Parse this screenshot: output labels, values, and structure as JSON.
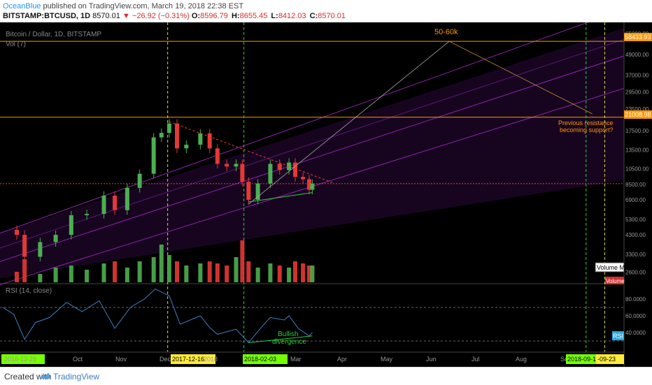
{
  "header": {
    "user": "OceanBlue",
    "published": "published on TradingView.com, March 19, 2018 22:38 EST",
    "symbol": "BITSTAMP:BTCUSD, 1D",
    "last": "8570.01",
    "change": "▼ −26.92 (−0.31%)",
    "o_label": "O:",
    "o": "8596.79",
    "h_label": "H:",
    "h": "8655.45",
    "l_label": "L:",
    "l": "8412.03",
    "c_label": "C:",
    "c": "8570.01"
  },
  "chart": {
    "pane_title": "Bitcoin / Dollar, 1D, BITSTAMP",
    "vol_label": "Vol (7)",
    "rsi_label": "RSI (14, close)",
    "annotations": {
      "target": "50-60k",
      "support_line1": "Previous resistance",
      "support_line2": "becoming support?",
      "bullish1": "Bullish",
      "bullish2": "divergence"
    },
    "badges": {
      "volume_ma": "Volume MA",
      "volume": "Volume",
      "rsi": "RSI",
      "price_58433": "58433.93",
      "price_21008": "21008.98"
    },
    "x_labels": [
      "2016-12-29",
      "Oct",
      "Nov",
      "Dec",
      "2017-12-16",
      "2018",
      "2018-02-03",
      "Mar",
      "Apr",
      "May",
      "Jun",
      "Jul",
      "Aug",
      "Se",
      "2018-09-11",
      "-09-23"
    ],
    "price_ticks": [
      "65000.00",
      "49000.00",
      "37000.00",
      "29500.00",
      "23500.00",
      "17500.00",
      "13500.00",
      "10500.00",
      "8500.00",
      "6900.00",
      "5300.00",
      "4300.00",
      "3300.00",
      "2600.00"
    ],
    "rsi_ticks": [
      "80.0000",
      "60.0000",
      "40.0000"
    ],
    "colors": {
      "background": "#000000",
      "up": "#4caf50",
      "down": "#e53935",
      "channel": "#8e24aa",
      "level": "#ff9800",
      "rsi_line": "#3b82c4",
      "rsi_bands": "#888888"
    }
  },
  "chart_data": {
    "type": "candlestick",
    "title": "Bitcoin / Dollar, 1D, BITSTAMP",
    "y_scale": "log",
    "ylim": [
      2400,
      70000
    ],
    "x_range": [
      "2017-09-01",
      "2018-09-30"
    ],
    "price_series": [
      [
        "2017-09-01",
        4600
      ],
      [
        "2017-09-10",
        4300
      ],
      [
        "2017-09-15",
        3200
      ],
      [
        "2017-09-25",
        3900
      ],
      [
        "2017-10-05",
        4300
      ],
      [
        "2017-10-15",
        5600
      ],
      [
        "2017-10-25",
        5700
      ],
      [
        "2017-11-05",
        7300
      ],
      [
        "2017-11-12",
        6000
      ],
      [
        "2017-11-20",
        8100
      ],
      [
        "2017-11-28",
        9800
      ],
      [
        "2017-12-07",
        16000
      ],
      [
        "2017-12-12",
        17000
      ],
      [
        "2017-12-17",
        19300
      ],
      [
        "2017-12-22",
        13800
      ],
      [
        "2017-12-28",
        14500
      ],
      [
        "2018-01-06",
        16900
      ],
      [
        "2018-01-12",
        13800
      ],
      [
        "2018-01-17",
        11200
      ],
      [
        "2018-01-23",
        10800
      ],
      [
        "2018-01-29",
        11200
      ],
      [
        "2018-02-02",
        8800
      ],
      [
        "2018-02-06",
        6900
      ],
      [
        "2018-02-12",
        8600
      ],
      [
        "2018-02-20",
        11200
      ],
      [
        "2018-02-26",
        10300
      ],
      [
        "2018-03-04",
        11400
      ],
      [
        "2018-03-08",
        9400
      ],
      [
        "2018-03-13",
        9100
      ],
      [
        "2018-03-17",
        7900
      ],
      [
        "2018-03-19",
        8570
      ]
    ],
    "levels": [
      58433.93,
      21008.98,
      8570.01
    ],
    "rsi_series": [
      [
        "2017-09-01",
        70
      ],
      [
        "2017-09-08",
        62
      ],
      [
        "2017-09-15",
        32
      ],
      [
        "2017-09-22",
        52
      ],
      [
        "2017-10-01",
        58
      ],
      [
        "2017-10-12",
        76
      ],
      [
        "2017-10-22",
        65
      ],
      [
        "2017-11-02",
        78
      ],
      [
        "2017-11-12",
        45
      ],
      [
        "2017-11-22",
        70
      ],
      [
        "2017-12-01",
        80
      ],
      [
        "2017-12-08",
        92
      ],
      [
        "2017-12-17",
        84
      ],
      [
        "2017-12-24",
        50
      ],
      [
        "2018-01-06",
        60
      ],
      [
        "2018-01-12",
        46
      ],
      [
        "2018-01-17",
        38
      ],
      [
        "2018-01-29",
        44
      ],
      [
        "2018-02-06",
        28
      ],
      [
        "2018-02-15",
        48
      ],
      [
        "2018-02-20",
        58
      ],
      [
        "2018-03-01",
        55
      ],
      [
        "2018-03-04",
        60
      ],
      [
        "2018-03-10",
        45
      ],
      [
        "2018-03-17",
        36
      ],
      [
        "2018-03-19",
        40
      ]
    ],
    "rsi_bands": [
      70,
      30
    ],
    "volume_relative": [
      0.3,
      0.25,
      0.55,
      0.2,
      0.35,
      0.4,
      0.3,
      0.45,
      0.5,
      0.35,
      0.5,
      0.6,
      0.9,
      0.65,
      0.5,
      0.4,
      0.45,
      0.5,
      0.45,
      0.4,
      0.6,
      1.0,
      0.5,
      0.35,
      0.45,
      0.4,
      0.35,
      0.5,
      0.45,
      0.4,
      0.4
    ]
  }
}
